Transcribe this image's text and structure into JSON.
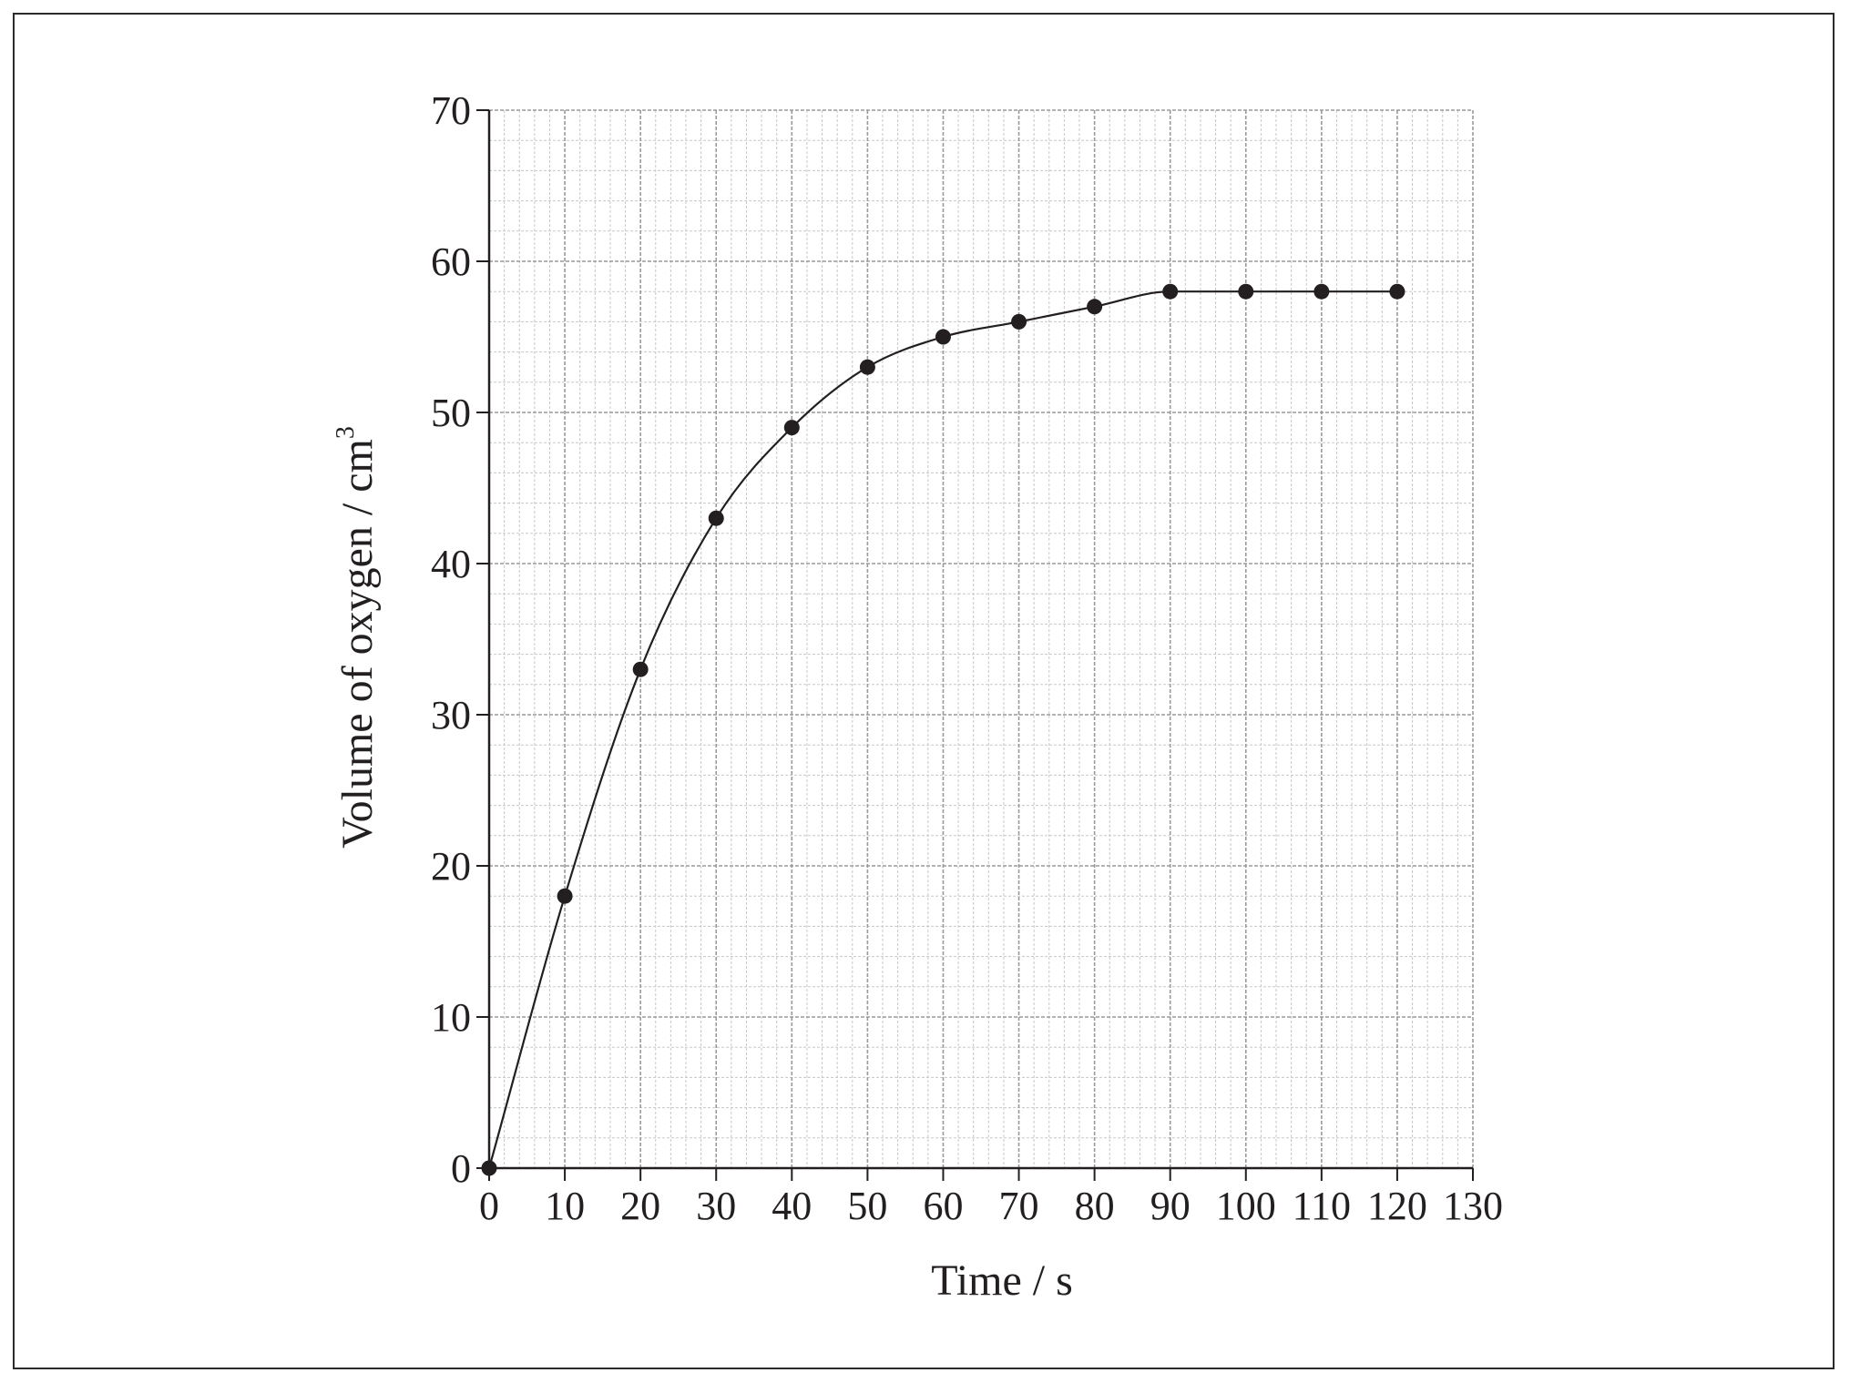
{
  "chart_data": {
    "type": "scatter",
    "title": "",
    "xlabel": "Time / s",
    "ylabel": "Volume of oxygen / cm",
    "ylabel_superscript": "3",
    "xlim": [
      0,
      130
    ],
    "ylim": [
      0,
      70
    ],
    "xticks": [
      0,
      10,
      20,
      30,
      40,
      50,
      60,
      70,
      80,
      90,
      100,
      110,
      120,
      130
    ],
    "yticks": [
      0,
      10,
      20,
      30,
      40,
      50,
      60,
      70
    ],
    "grid": true,
    "fitted_curve": true,
    "series": [
      {
        "x": [
          0,
          10,
          20,
          30,
          40,
          50,
          60,
          70,
          80,
          90,
          100,
          110,
          120
        ],
        "y": [
          0,
          18,
          33,
          43,
          49,
          53,
          55,
          56,
          57,
          58,
          58,
          58,
          58
        ]
      }
    ],
    "colors": {
      "ink": "#231f20",
      "grid_major": "#9a9a9a",
      "grid_minor": "#c8c8c8"
    }
  }
}
